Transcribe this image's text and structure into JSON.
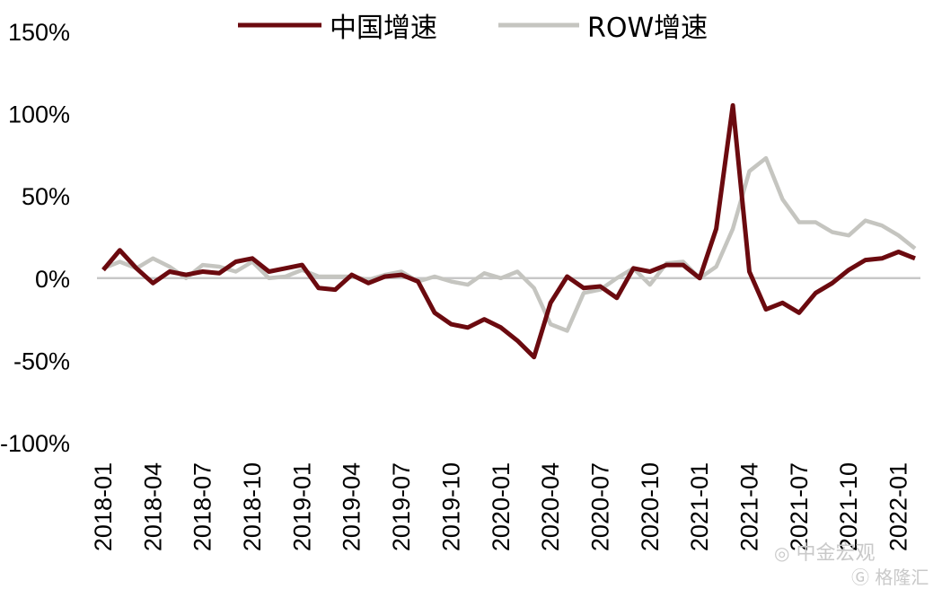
{
  "chart_data": {
    "type": "line",
    "title": "",
    "xlabel": "",
    "ylabel": "",
    "ylim": [
      -100,
      150
    ],
    "yticks": [
      150,
      100,
      50,
      0,
      -50,
      -100
    ],
    "ytick_labels": [
      "150%",
      "100%",
      "50%",
      "0%",
      "-50%",
      "-100%"
    ],
    "xtick_labels": [
      "2018-01",
      "2018-04",
      "2018-07",
      "2018-10",
      "2019-01",
      "2019-04",
      "2019-07",
      "2019-10",
      "2020-01",
      "2020-04",
      "2020-07",
      "2020-10",
      "2021-01",
      "2021-04",
      "2021-07",
      "2021-10",
      "2022-01"
    ],
    "zero_line": true,
    "legend_position": "top-center",
    "x": [
      "2018-01",
      "2018-02",
      "2018-03",
      "2018-04",
      "2018-05",
      "2018-06",
      "2018-07",
      "2018-08",
      "2018-09",
      "2018-10",
      "2018-11",
      "2018-12",
      "2019-01",
      "2019-02",
      "2019-03",
      "2019-04",
      "2019-05",
      "2019-06",
      "2019-07",
      "2019-08",
      "2019-09",
      "2019-10",
      "2019-11",
      "2019-12",
      "2020-01",
      "2020-02",
      "2020-03",
      "2020-04",
      "2020-05",
      "2020-06",
      "2020-07",
      "2020-08",
      "2020-09",
      "2020-10",
      "2020-11",
      "2020-12",
      "2021-01",
      "2021-02",
      "2021-03",
      "2021-04",
      "2021-05",
      "2021-06",
      "2021-07",
      "2021-08",
      "2021-09",
      "2021-10",
      "2021-11",
      "2021-12",
      "2022-01",
      "2022-02"
    ],
    "series": [
      {
        "name": "中国增速",
        "color": "#6b0a0f",
        "values": [
          5,
          17,
          6,
          -3,
          4,
          2,
          4,
          3,
          10,
          12,
          4,
          6,
          8,
          -6,
          -7,
          2,
          -3,
          1,
          2,
          -2,
          -21,
          -28,
          -30,
          -25,
          -30,
          -38,
          -48,
          -15,
          1,
          -6,
          -5,
          -12,
          6,
          4,
          8,
          8,
          0,
          30,
          105,
          4,
          -19,
          -15,
          -21,
          -9,
          -3,
          5,
          11,
          12,
          16,
          12
        ]
      },
      {
        "name": "ROW增速",
        "color": "#c5c5c0",
        "values": [
          6,
          10,
          6,
          12,
          7,
          0,
          8,
          7,
          4,
          10,
          0,
          1,
          5,
          1,
          1,
          1,
          -1,
          2,
          4,
          -2,
          1,
          -2,
          -4,
          3,
          0,
          4,
          -6,
          -28,
          -32,
          -9,
          -7,
          0,
          6,
          -4,
          9,
          10,
          0,
          7,
          30,
          65,
          73,
          48,
          34,
          34,
          28,
          26,
          35,
          32,
          26,
          18
        ]
      }
    ]
  },
  "watermarks": {
    "line1": "中金宏观",
    "line2": "格隆汇"
  }
}
